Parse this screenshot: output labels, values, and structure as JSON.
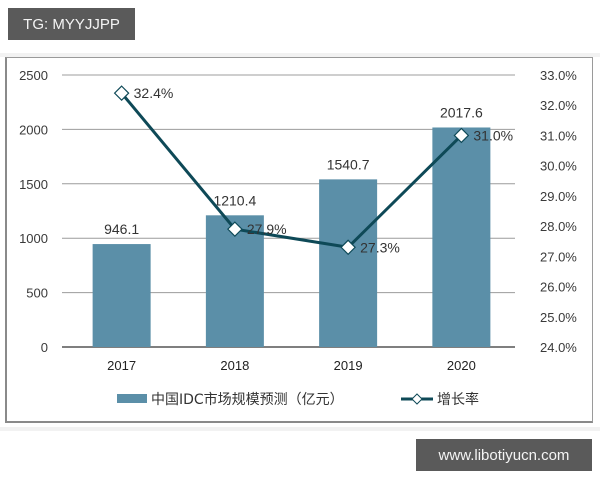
{
  "watermarks": {
    "top": "TG: MYYJJPP",
    "bottom": "www.libotiyucn.com"
  },
  "chart_data": {
    "type": "bar",
    "title": "",
    "categories": [
      "2017",
      "2018",
      "2019",
      "2020"
    ],
    "series": [
      {
        "name": "中国IDC市场规模预测（亿元）",
        "type": "bar",
        "axis": "left",
        "values": [
          946.1,
          1210.4,
          1540.7,
          2017.6
        ],
        "labels": [
          "946.1",
          "1210.4",
          "1540.7",
          "2017.6"
        ],
        "color": "#5b8fa8"
      },
      {
        "name": "增长率",
        "type": "line",
        "axis": "right",
        "values": [
          32.4,
          27.9,
          27.3,
          31.0
        ],
        "labels": [
          "32.4%",
          "27.9%",
          "27.3%",
          "31.0%"
        ],
        "color": "#0e4957",
        "marker": "diamond"
      }
    ],
    "left_axis": {
      "ylim": [
        0,
        2500
      ],
      "ticks": [
        "0",
        "500",
        "1000",
        "1500",
        "2000",
        "2500"
      ]
    },
    "right_axis": {
      "ylim": [
        24.0,
        33.0
      ],
      "ticks": [
        "24.0%",
        "25.0%",
        "26.0%",
        "27.0%",
        "28.0%",
        "29.0%",
        "30.0%",
        "31.0%",
        "32.0%",
        "33.0%"
      ]
    },
    "xlabel": "",
    "ylabel": "",
    "grid": true,
    "legend_position": "bottom",
    "legend": [
      "中国IDC市场规模预测（亿元）",
      "增长率"
    ]
  }
}
